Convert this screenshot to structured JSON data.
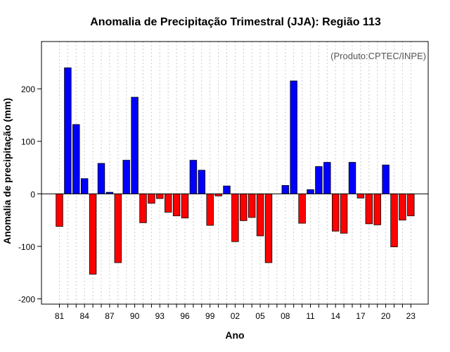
{
  "chart_data": {
    "type": "bar",
    "title": "Anomalia de Precipitação Trimestral (JJA): Região 113",
    "xlabel": "Ano",
    "ylabel": "Anomalia de precipitação (mm)",
    "credit": "(Produto:CPTEC/INPE)",
    "ylim": [
      -210,
      290
    ],
    "yticks": [
      -200,
      -100,
      0,
      100,
      200
    ],
    "xtick_labels": [
      "81",
      "84",
      "87",
      "90",
      "93",
      "96",
      "99",
      "02",
      "05",
      "08",
      "11",
      "14",
      "17",
      "20",
      "23"
    ],
    "years": [
      1981,
      1982,
      1983,
      1984,
      1985,
      1986,
      1987,
      1988,
      1989,
      1990,
      1991,
      1992,
      1993,
      1994,
      1995,
      1996,
      1997,
      1998,
      1999,
      2000,
      2001,
      2002,
      2003,
      2004,
      2005,
      2006,
      2007,
      2008,
      2009,
      2010,
      2011,
      2012,
      2013,
      2014,
      2015,
      2016,
      2017,
      2018,
      2019,
      2020,
      2021,
      2022,
      2023
    ],
    "values": [
      -62,
      240,
      132,
      29,
      -153,
      58,
      3,
      -131,
      64,
      184,
      -55,
      -18,
      -9,
      -35,
      -42,
      -46,
      64,
      45,
      -60,
      -4,
      15,
      -91,
      -51,
      -45,
      -80,
      -131,
      0,
      16,
      215,
      -56,
      8,
      52,
      60,
      -71,
      -75,
      60,
      -8,
      -57,
      -59,
      55,
      -101,
      -50,
      -42
    ],
    "colors": {
      "positive": "#0000ff",
      "negative": "#ff0000",
      "axis": "#000000",
      "grid": "#cccccc"
    }
  }
}
